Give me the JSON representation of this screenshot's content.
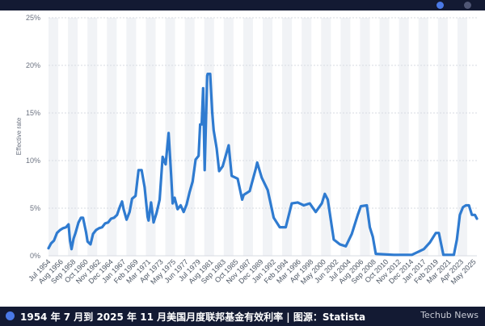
{
  "caption": "1954 年 7 月到 2025 年 11 月美国月度联邦基金有效利率 | 图源：Statista",
  "watermark": "Techub News",
  "colors": {
    "line": "#2f7bd0",
    "grid": "#d7dbe2",
    "band": "#f1f3f6",
    "bar": "#131a33"
  },
  "chart_data": {
    "type": "line",
    "title": "",
    "xlabel": "",
    "ylabel": "Effective rate",
    "ylim": [
      0,
      25
    ],
    "yticks": [
      "0%",
      "5%",
      "10%",
      "15%",
      "20%",
      "25%"
    ],
    "xticks": [
      "Jul 1954",
      "Aug 1956",
      "Sep 1958",
      "Oct 1960",
      "Nov 1962",
      "Dec 1964",
      "Jan 1967",
      "Feb 1969",
      "Mar 1971",
      "Apr 1973",
      "May 1975",
      "Jun 1977",
      "Jul 1979",
      "Aug 1981",
      "Sep 1983",
      "Oct 1985",
      "Nov 1987",
      "Dec 1989",
      "Jan 1992",
      "Feb 1994",
      "Mar 1996",
      "Apr 1998",
      "May 2000",
      "Jun 2002",
      "Jul 2004",
      "Aug 2006",
      "Sep 2008",
      "Oct 2010",
      "Nov 2012",
      "Dec 2014",
      "Jan 2017",
      "Feb 2019",
      "Mar 2021",
      "Apr 2023",
      "May 2025"
    ],
    "grid": true,
    "series": [
      {
        "values": [
          {
            "x": "Jul 1954",
            "y": 0.8
          },
          {
            "x": "Dec 1954",
            "y": 1.3
          },
          {
            "x": "Jun 1955",
            "y": 1.6
          },
          {
            "x": "Dec 1955",
            "y": 2.4
          },
          {
            "x": "Jun 1956",
            "y": 2.7
          },
          {
            "x": "Dec 1956",
            "y": 2.9
          },
          {
            "x": "Jun 1957",
            "y": 3.0
          },
          {
            "x": "Nov 1957",
            "y": 3.3
          },
          {
            "x": "Feb 1958",
            "y": 1.6
          },
          {
            "x": "May 1958",
            "y": 0.7
          },
          {
            "x": "Sep 1958",
            "y": 1.8
          },
          {
            "x": "Jan 1959",
            "y": 2.4
          },
          {
            "x": "Jul 1959",
            "y": 3.5
          },
          {
            "x": "Dec 1959",
            "y": 4.0
          },
          {
            "x": "Apr 1960",
            "y": 4.0
          },
          {
            "x": "Oct 1960",
            "y": 2.5
          },
          {
            "x": "Jan 1961",
            "y": 1.5
          },
          {
            "x": "Jul 1961",
            "y": 1.2
          },
          {
            "x": "Dec 1961",
            "y": 2.3
          },
          {
            "x": "Jun 1962",
            "y": 2.7
          },
          {
            "x": "Dec 1962",
            "y": 2.9
          },
          {
            "x": "Jun 1963",
            "y": 3.0
          },
          {
            "x": "Dec 1963",
            "y": 3.4
          },
          {
            "x": "Jun 1964",
            "y": 3.5
          },
          {
            "x": "Dec 1964",
            "y": 3.9
          },
          {
            "x": "Jun 1965",
            "y": 4.0
          },
          {
            "x": "Dec 1965",
            "y": 4.3
          },
          {
            "x": "Jun 1966",
            "y": 5.2
          },
          {
            "x": "Oct 1966",
            "y": 5.7
          },
          {
            "x": "Jan 1967",
            "y": 4.9
          },
          {
            "x": "Jul 1967",
            "y": 3.8
          },
          {
            "x": "Jan 1968",
            "y": 4.6
          },
          {
            "x": "Jun 1968",
            "y": 6.0
          },
          {
            "x": "Jan 1969",
            "y": 6.3
          },
          {
            "x": "Jul 1969",
            "y": 9.0
          },
          {
            "x": "Jan 1970",
            "y": 9.0
          },
          {
            "x": "Jul 1970",
            "y": 7.2
          },
          {
            "x": "Jan 1971",
            "y": 4.1
          },
          {
            "x": "Mar 1971",
            "y": 3.7
          },
          {
            "x": "Aug 1971",
            "y": 5.6
          },
          {
            "x": "Jan 1972",
            "y": 3.5
          },
          {
            "x": "Jul 1972",
            "y": 4.5
          },
          {
            "x": "Jan 1973",
            "y": 5.9
          },
          {
            "x": "Jul 1973",
            "y": 10.4
          },
          {
            "x": "Oct 1973",
            "y": 10.0
          },
          {
            "x": "Jan 1974",
            "y": 9.6
          },
          {
            "x": "Jul 1974",
            "y": 12.9
          },
          {
            "x": "Dec 1974",
            "y": 8.5
          },
          {
            "x": "Mar 1975",
            "y": 5.5
          },
          {
            "x": "Jul 1975",
            "y": 6.1
          },
          {
            "x": "Jan 1976",
            "y": 4.9
          },
          {
            "x": "Jul 1976",
            "y": 5.3
          },
          {
            "x": "Jan 1977",
            "y": 4.6
          },
          {
            "x": "Jul 1977",
            "y": 5.4
          },
          {
            "x": "Jan 1978",
            "y": 6.7
          },
          {
            "x": "Jul 1978",
            "y": 7.8
          },
          {
            "x": "Jan 1979",
            "y": 10.1
          },
          {
            "x": "Jul 1979",
            "y": 10.5
          },
          {
            "x": "Oct 1979",
            "y": 13.8
          },
          {
            "x": "Jan 1980",
            "y": 13.8
          },
          {
            "x": "Apr 1980",
            "y": 17.6
          },
          {
            "x": "Jul 1980",
            "y": 9.0
          },
          {
            "x": "Dec 1980",
            "y": 18.9
          },
          {
            "x": "Jan 1981",
            "y": 19.1
          },
          {
            "x": "Jun 1981",
            "y": 19.1
          },
          {
            "x": "Oct 1981",
            "y": 15.1
          },
          {
            "x": "Jan 1982",
            "y": 13.2
          },
          {
            "x": "Jul 1982",
            "y": 11.3
          },
          {
            "x": "Dec 1982",
            "y": 8.9
          },
          {
            "x": "Jul 1983",
            "y": 9.4
          },
          {
            "x": "Jul 1984",
            "y": 11.6
          },
          {
            "x": "Jan 1985",
            "y": 8.4
          },
          {
            "x": "Jan 1986",
            "y": 8.1
          },
          {
            "x": "Oct 1986",
            "y": 5.9
          },
          {
            "x": "Jan 1987",
            "y": 6.4
          },
          {
            "x": "Jan 1988",
            "y": 6.8
          },
          {
            "x": "Jan 1989",
            "y": 9.1
          },
          {
            "x": "Apr 1989",
            "y": 9.8
          },
          {
            "x": "Jan 1990",
            "y": 8.2
          },
          {
            "x": "Jan 1991",
            "y": 6.9
          },
          {
            "x": "Jan 1992",
            "y": 4.0
          },
          {
            "x": "Jan 1993",
            "y": 3.0
          },
          {
            "x": "Jan 1994",
            "y": 3.0
          },
          {
            "x": "Jan 1995",
            "y": 5.5
          },
          {
            "x": "Jan 1996",
            "y": 5.6
          },
          {
            "x": "Jan 1997",
            "y": 5.3
          },
          {
            "x": "Jan 1998",
            "y": 5.5
          },
          {
            "x": "Jan 1999",
            "y": 4.6
          },
          {
            "x": "Jan 2000",
            "y": 5.5
          },
          {
            "x": "Jul 2000",
            "y": 6.5
          },
          {
            "x": "Jan 2001",
            "y": 5.9
          },
          {
            "x": "Jan 2002",
            "y": 1.7
          },
          {
            "x": "Jan 2003",
            "y": 1.2
          },
          {
            "x": "Jan 2004",
            "y": 1.0
          },
          {
            "x": "Jan 2005",
            "y": 2.3
          },
          {
            "x": "Jan 2006",
            "y": 4.3
          },
          {
            "x": "Jul 2006",
            "y": 5.2
          },
          {
            "x": "Jul 2007",
            "y": 5.3
          },
          {
            "x": "Jan 2008",
            "y": 3.0
          },
          {
            "x": "Jul 2008",
            "y": 2.0
          },
          {
            "x": "Jan 2009",
            "y": 0.2
          },
          {
            "x": "Jan 2012",
            "y": 0.1
          },
          {
            "x": "Jan 2015",
            "y": 0.1
          },
          {
            "x": "Jan 2016",
            "y": 0.4
          },
          {
            "x": "Jan 2017",
            "y": 0.7
          },
          {
            "x": "Jan 2018",
            "y": 1.4
          },
          {
            "x": "Jan 2019",
            "y": 2.4
          },
          {
            "x": "Jul 2019",
            "y": 2.4
          },
          {
            "x": "Apr 2020",
            "y": 0.1
          },
          {
            "x": "Jan 2022",
            "y": 0.1
          },
          {
            "x": "Jul 2022",
            "y": 1.7
          },
          {
            "x": "Jan 2023",
            "y": 4.3
          },
          {
            "x": "Jul 2023",
            "y": 5.1
          },
          {
            "x": "Jan 2024",
            "y": 5.3
          },
          {
            "x": "Jul 2024",
            "y": 5.3
          },
          {
            "x": "Jan 2025",
            "y": 4.3
          },
          {
            "x": "Jul 2025",
            "y": 4.3
          },
          {
            "x": "Nov 2025",
            "y": 3.9
          }
        ]
      }
    ]
  }
}
